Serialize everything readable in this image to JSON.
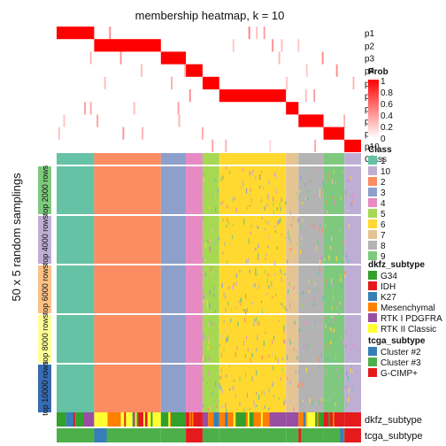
{
  "chart_data": {
    "type": "heatmap",
    "title": "membership heatmap, k = 10",
    "ylabel": "50 x 5 random samplings",
    "membership_rows": [
      "p1",
      "p2",
      "p3",
      "p4",
      "p5",
      "p6",
      "p7",
      "p8",
      "p9",
      "p10"
    ],
    "membership_column_spans": [
      [
        0,
        45
      ],
      [
        45,
        125
      ],
      [
        125,
        155
      ],
      [
        155,
        175
      ],
      [
        175,
        195
      ],
      [
        195,
        275
      ],
      [
        275,
        290
      ],
      [
        290,
        320
      ],
      [
        320,
        345
      ],
      [
        345,
        365
      ]
    ],
    "n_columns": 365,
    "class_order": [
      1,
      2,
      3,
      4,
      5,
      6,
      7,
      8,
      9,
      10
    ],
    "class_column_spans": [
      [
        1,
        0,
        45
      ],
      [
        2,
        45,
        125
      ],
      [
        3,
        125,
        155
      ],
      [
        4,
        155,
        175
      ],
      [
        5,
        175,
        195
      ],
      [
        6,
        195,
        275
      ],
      [
        7,
        275,
        290
      ],
      [
        8,
        290,
        320
      ],
      [
        9,
        320,
        345
      ],
      [
        10,
        345,
        365
      ]
    ],
    "row_groups": [
      "top 2000 rows",
      "top 4000 rows",
      "top 6000 rows",
      "top 8000 rows",
      "top 10000 rows"
    ],
    "row_group_colors": [
      "#7FC97F",
      "#BEAED4",
      "#FDC086",
      "#FFFF99",
      "#386CB0"
    ],
    "prob_legend": {
      "title": "Prob",
      "ticks": [
        "1",
        "0.8",
        "0.6",
        "0.4",
        "0.2",
        "0"
      ],
      "range": [
        0,
        1
      ]
    },
    "class_legend": {
      "title": "Class",
      "labels": [
        "1",
        "10",
        "2",
        "3",
        "4",
        "5",
        "6",
        "7",
        "8",
        "9"
      ],
      "colors": [
        "#66C2A5",
        "#BEAED4",
        "#FC8D62",
        "#8DA0CB",
        "#E78AC3",
        "#A6D854",
        "#FFD92F",
        "#E5C494",
        "#B3B3B3",
        "#7FC97F"
      ]
    },
    "class_colors": {
      "1": "#66C2A5",
      "2": "#FC8D62",
      "3": "#8DA0CB",
      "4": "#E78AC3",
      "5": "#A6D854",
      "6": "#FFD92F",
      "7": "#E5C494",
      "8": "#B3B3B3",
      "9": "#7FC97F",
      "10": "#BEAED4"
    },
    "dkfz_legend": {
      "title": "dkfz_subtype",
      "labels": [
        "G34",
        "IDH",
        "K27",
        "Mesenchymal",
        "RTK I PDGFRA",
        "RTK II Classic"
      ],
      "colors": [
        "#33A02C",
        "#E41A1C",
        "#377EB8",
        "#FF7F00",
        "#984EA3",
        "#FFFF33"
      ]
    },
    "tcga_legend": {
      "title": "tcga_subtype",
      "labels": [
        "Cluster #2",
        "Cluster #3",
        "G-CIMP+"
      ],
      "colors": [
        "#377EB8",
        "#4DAF4A",
        "#E41A1C"
      ]
    },
    "bottom_annotations": [
      "dkfz_subtype",
      "tcga_subtype"
    ]
  }
}
